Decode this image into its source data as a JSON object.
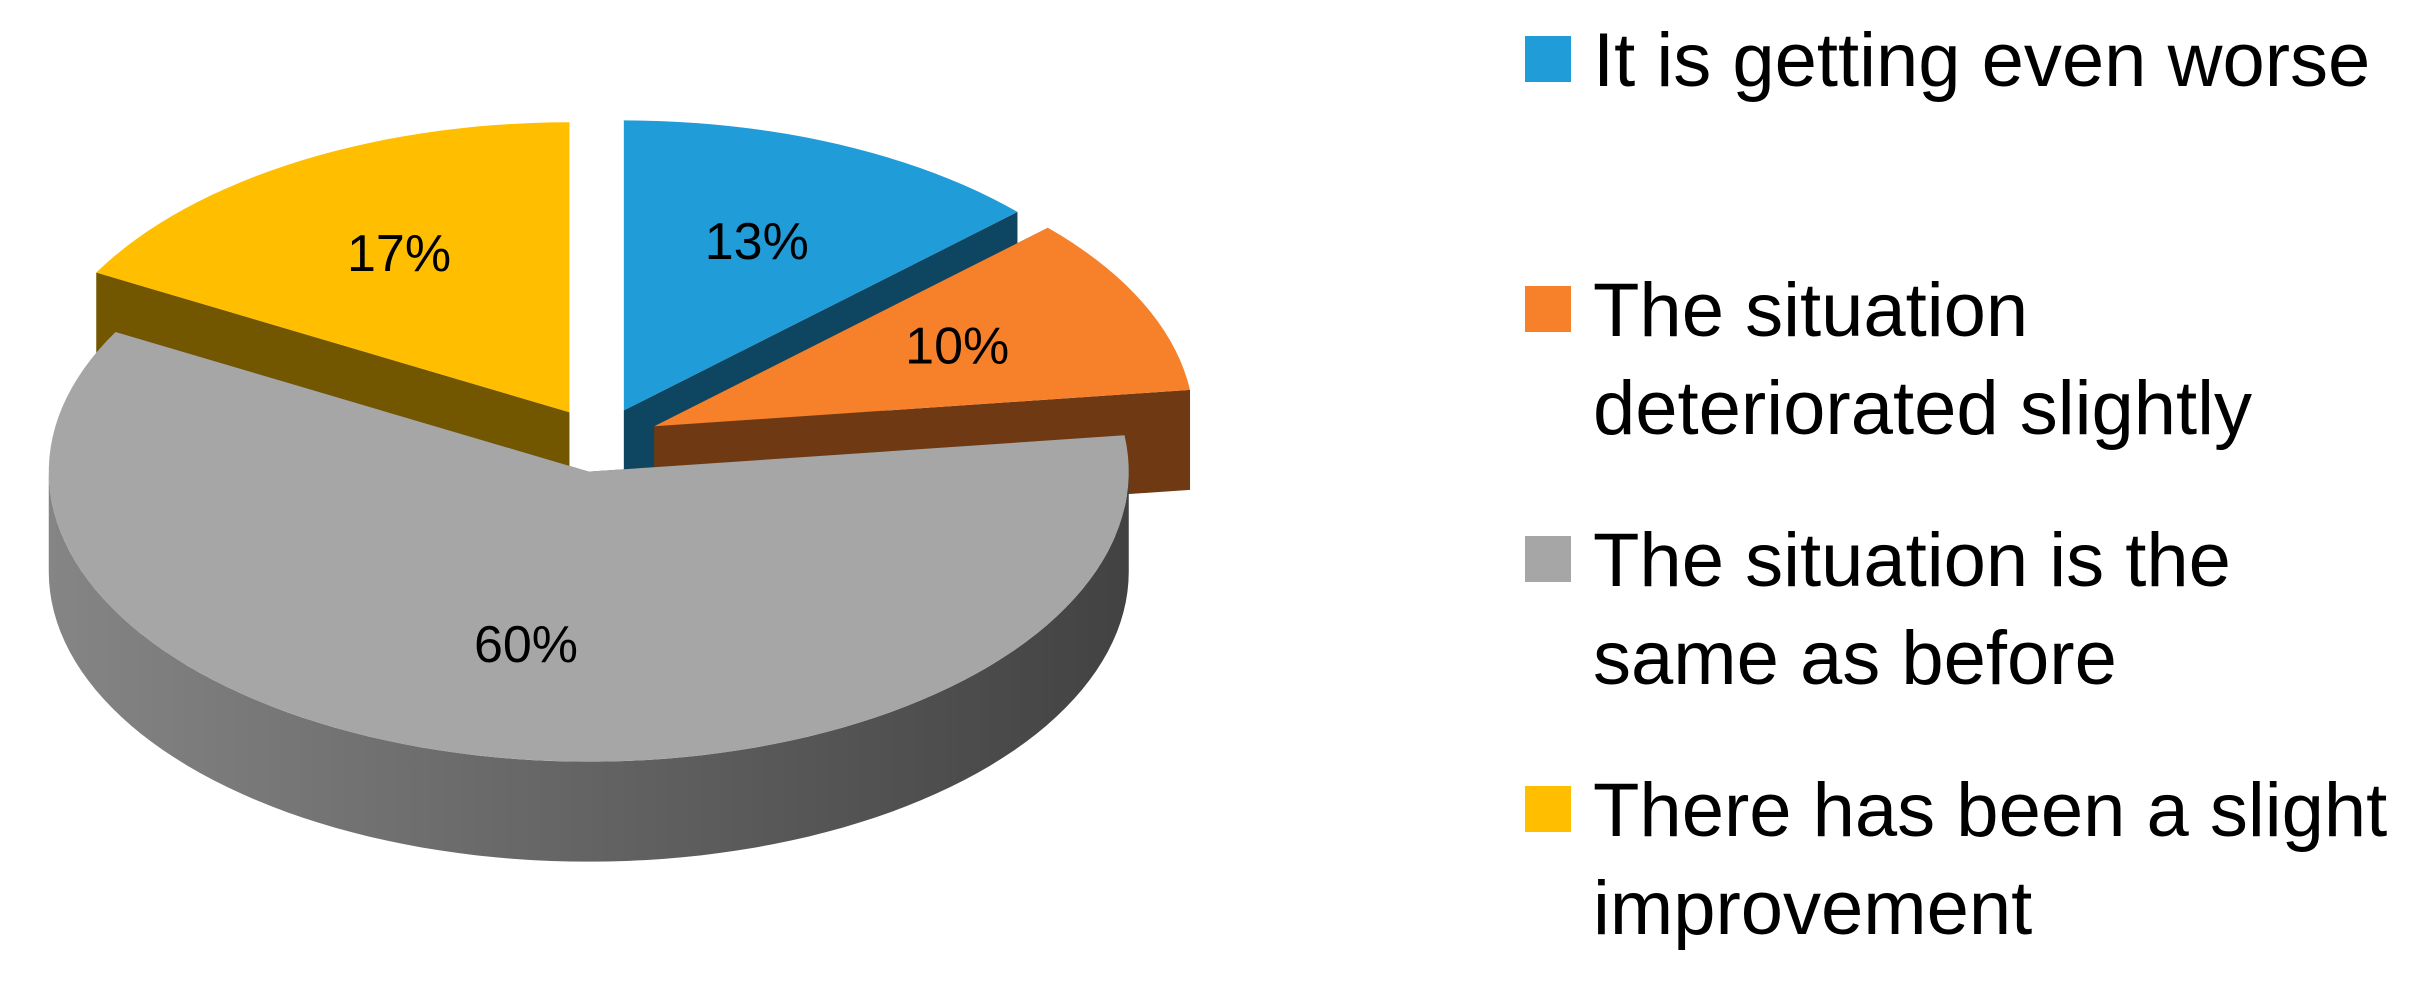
{
  "chart_data": {
    "type": "pie",
    "three_d": true,
    "exploded": true,
    "categories": [
      "It is getting even worse",
      "The situation deteriorated slightly",
      "The situation is the same as before",
      "There has been a slight improvement"
    ],
    "values": [
      13,
      10,
      60,
      17
    ],
    "value_labels": [
      "13%",
      "10%",
      "60%",
      "17%"
    ],
    "colors": [
      "#209cd8",
      "#f7802a",
      "#a6a6a6",
      "#ffbf00"
    ],
    "legend": "right"
  }
}
